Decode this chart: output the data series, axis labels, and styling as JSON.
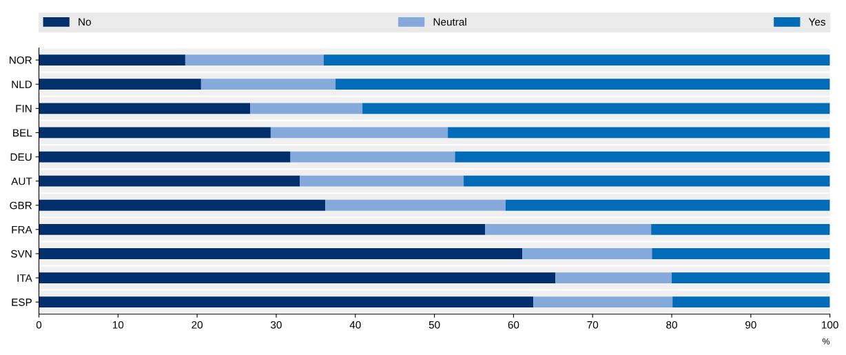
{
  "chart_data": {
    "type": "bar",
    "orientation": "horizontal",
    "stacked": true,
    "categories": [
      "NOR",
      "NLD",
      "FIN",
      "BEL",
      "DEU",
      "AUT",
      "GBR",
      "FRA",
      "SVN",
      "ITA",
      "ESP"
    ],
    "series": [
      {
        "name": "No",
        "color": "#002f6c",
        "values": [
          18.5,
          20.5,
          26.7,
          29.3,
          31.8,
          33.0,
          36.2,
          56.4,
          61.1,
          65.3,
          62.5
        ]
      },
      {
        "name": "Neutral",
        "color": "#86a9db",
        "values": [
          17.5,
          17.0,
          14.2,
          22.4,
          20.8,
          20.7,
          22.8,
          21.0,
          16.4,
          14.7,
          17.6
        ]
      },
      {
        "name": "Yes",
        "color": "#006bb6",
        "values": [
          64.0,
          62.5,
          59.1,
          48.3,
          47.4,
          46.3,
          41.0,
          22.6,
          22.5,
          20.0,
          19.9
        ]
      }
    ],
    "xlim": [
      0,
      100
    ],
    "xticks": [
      0,
      10,
      20,
      30,
      40,
      50,
      60,
      70,
      80,
      90,
      100
    ],
    "xlabel": "%",
    "legend": "top",
    "grid": false
  }
}
